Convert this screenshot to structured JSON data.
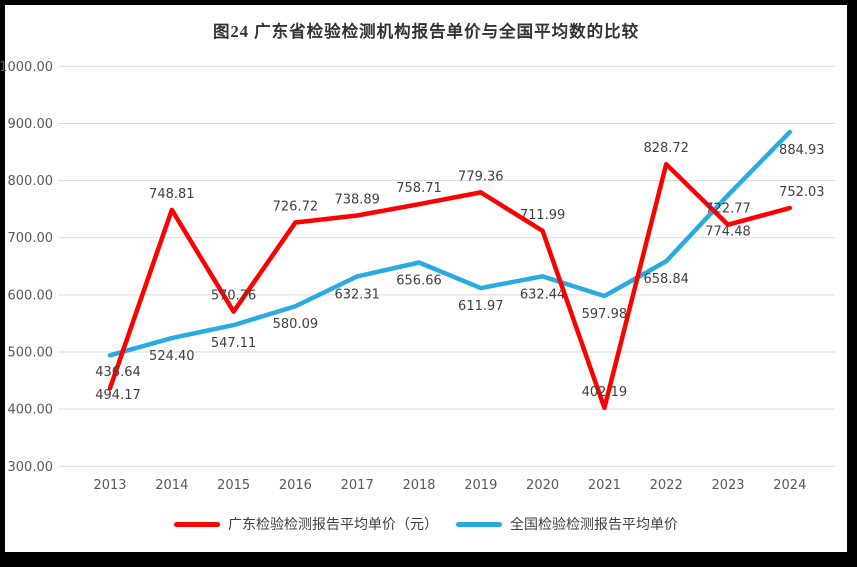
{
  "window": {
    "background_color": "#000000",
    "card_background_color": "#FFFFFF"
  },
  "chart_data": {
    "type": "line",
    "title": "图24  广东省检验检测机构报告单价与全国平均数的比较",
    "categories": [
      "2013",
      "2014",
      "2015",
      "2016",
      "2017",
      "2018",
      "2019",
      "2020",
      "2021",
      "2022",
      "2023",
      "2024"
    ],
    "series": [
      {
        "name": "广东检验检测报告平均单价（元）",
        "color": "#FE0000",
        "data_label_position": "above",
        "values": [
          436.64,
          748.81,
          570.76,
          726.72,
          738.89,
          758.71,
          779.36,
          711.99,
          402.19,
          828.72,
          722.77,
          752.03
        ]
      },
      {
        "name": "全国检验检测报告平均单价",
        "color": "#29ABE2",
        "data_label_position": "below",
        "values": [
          494.17,
          524.4,
          547.11,
          580.09,
          632.31,
          656.66,
          611.97,
          632.44,
          597.98,
          658.84,
          774.48,
          884.93
        ]
      }
    ],
    "ylim": [
      300,
      1000
    ],
    "ytick_step": 100,
    "yticks": [
      "1000.00",
      "900.00",
      "800.00",
      "700.00",
      "600.00",
      "500.00",
      "400.00",
      "300.00"
    ],
    "grid": "horizontal gridlines only",
    "gridline_color": "#D9D9D9",
    "axis_text_color": "#595959",
    "data_label_color": "#404040",
    "data_labels_shown": true,
    "legend_position": "bottom"
  }
}
